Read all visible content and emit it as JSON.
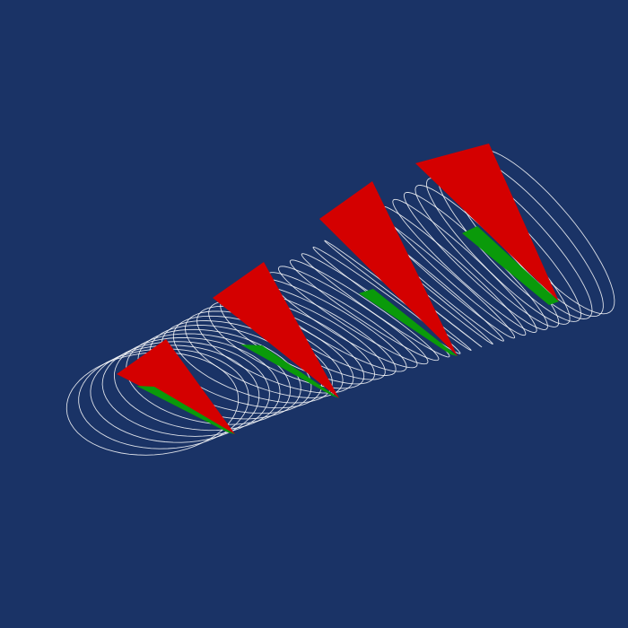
{
  "viewport": {
    "background_color": "#1a3366"
  },
  "model": {
    "wireframe_color": "#ffffff",
    "sections": [
      {
        "id": "rib-1",
        "face_color": "#d40000",
        "band_color": "#0a9a0a"
      },
      {
        "id": "rib-2",
        "face_color": "#d40000",
        "band_color": "#0a9a0a"
      },
      {
        "id": "rib-3",
        "face_color": "#d40000",
        "band_color": "#0a9a0a"
      },
      {
        "id": "rib-4",
        "face_color": "#d40000",
        "band_color": "#0a9a0a"
      }
    ]
  }
}
